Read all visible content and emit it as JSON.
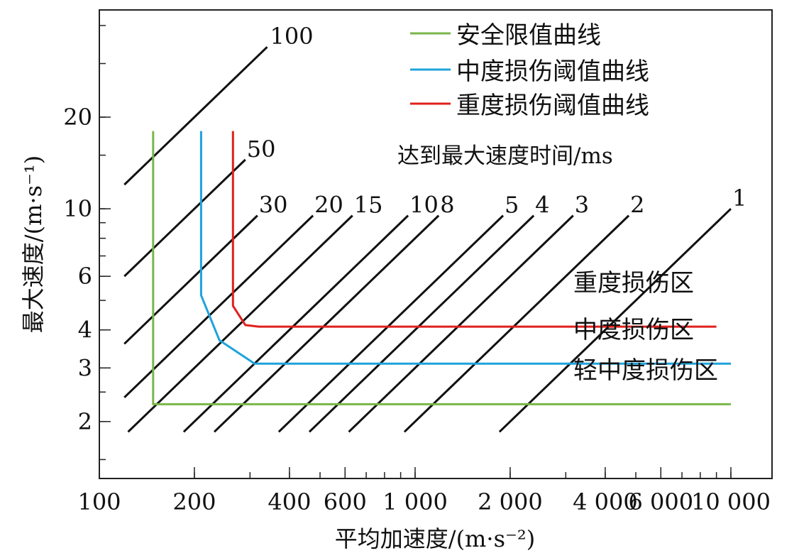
{
  "chart_data": {
    "type": "line",
    "x_scale": "log",
    "y_scale": "log",
    "xlim": [
      100,
      13500
    ],
    "ylim": [
      1.3,
      45
    ],
    "xlabel": "平均加速度/(m·s⁻²)",
    "ylabel": "最大速度/(m·s⁻¹)",
    "x_ticks": [
      100,
      200,
      400,
      600,
      1000,
      2000,
      4000,
      6000,
      10000
    ],
    "x_tick_labels": [
      "100",
      "200",
      "400",
      "600",
      "1 000",
      "2 000",
      "4 000",
      "6 000",
      "10 000"
    ],
    "y_ticks": [
      2,
      3,
      4,
      6,
      10,
      20
    ],
    "y_tick_labels": [
      "2",
      "3",
      "4",
      "6",
      "10",
      "20"
    ],
    "legend_position": "top-right",
    "series": [
      {
        "name": "安全限值曲线",
        "color": "#7ab648",
        "points": [
          [
            148,
            18
          ],
          [
            148,
            2.28
          ],
          [
            10000,
            2.28
          ]
        ]
      },
      {
        "name": "中度损伤阈值曲线",
        "color": "#1ea3dc",
        "points": [
          [
            210,
            18
          ],
          [
            210,
            5.2
          ],
          [
            240,
            3.7
          ],
          [
            310,
            3.1
          ],
          [
            10000,
            3.1
          ]
        ]
      },
      {
        "name": "重度损伤阈值曲线",
        "color": "#e0201c",
        "points": [
          [
            265,
            18
          ],
          [
            265,
            4.8
          ],
          [
            290,
            4.15
          ],
          [
            320,
            4.1
          ],
          [
            9000,
            4.1
          ]
        ]
      }
    ],
    "time_lines": {
      "title": "达到最大速度时间/ms",
      "items": [
        {
          "label": "100",
          "ms": 100
        },
        {
          "label": "50",
          "ms": 50
        },
        {
          "label": "30",
          "ms": 30
        },
        {
          "label": "20",
          "ms": 20
        },
        {
          "label": "15",
          "ms": 15
        },
        {
          "label": "10",
          "ms": 10
        },
        {
          "label": "8",
          "ms": 8
        },
        {
          "label": "5",
          "ms": 5
        },
        {
          "label": "4",
          "ms": 4
        },
        {
          "label": "3",
          "ms": 3
        },
        {
          "label": "2",
          "ms": 2
        },
        {
          "label": "1",
          "ms": 1
        }
      ]
    },
    "regions": [
      "重度损伤区",
      "中度损伤区",
      "轻中度损伤区"
    ]
  }
}
